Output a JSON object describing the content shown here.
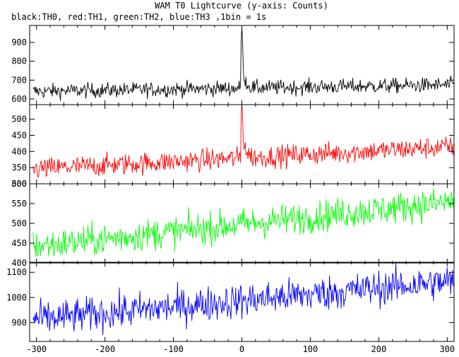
{
  "chart_data": {
    "type": "line",
    "title": "WAM T0 Lightcurve (y-axis: Counts)",
    "subtitle": "black:TH0, red:TH1, green:TH2, blue:TH3 ,1bin = 1s",
    "xlim": [
      -310,
      310
    ],
    "x_ticks": [
      -300,
      -200,
      -100,
      0,
      100,
      200,
      300
    ],
    "panels": [
      {
        "name": "TH0",
        "color": "#000000",
        "ylim": [
          570,
          990
        ],
        "y_ticks": [
          600,
          700,
          800,
          900
        ],
        "baseline_start": 640,
        "baseline_end": 675,
        "noise": 20,
        "burst": {
          "t0": 0,
          "peak": 980,
          "tail": 760,
          "decay": 4
        }
      },
      {
        "name": "TH1",
        "color": "#ff0000",
        "ylim": [
          300,
          545
        ],
        "y_ticks": [
          300,
          350,
          400,
          450,
          500
        ],
        "baseline_start": 345,
        "baseline_end": 415,
        "noise": 17,
        "burst": {
          "t0": 0,
          "peak": 545,
          "tail": 430,
          "decay": 4
        }
      },
      {
        "name": "TH2",
        "color": "#00ff00",
        "ylim": [
          400,
          600
        ],
        "y_ticks": [
          400,
          450,
          500,
          550,
          600
        ],
        "baseline_start": 440,
        "baseline_end": 555,
        "noise": 20,
        "burst": null
      },
      {
        "name": "TH3",
        "color": "#0000ff",
        "ylim": [
          825,
          1140
        ],
        "y_ticks": [
          900,
          1000,
          1100
        ],
        "baseline_start": 910,
        "baseline_end": 1065,
        "noise": 35,
        "burst": null
      }
    ]
  }
}
